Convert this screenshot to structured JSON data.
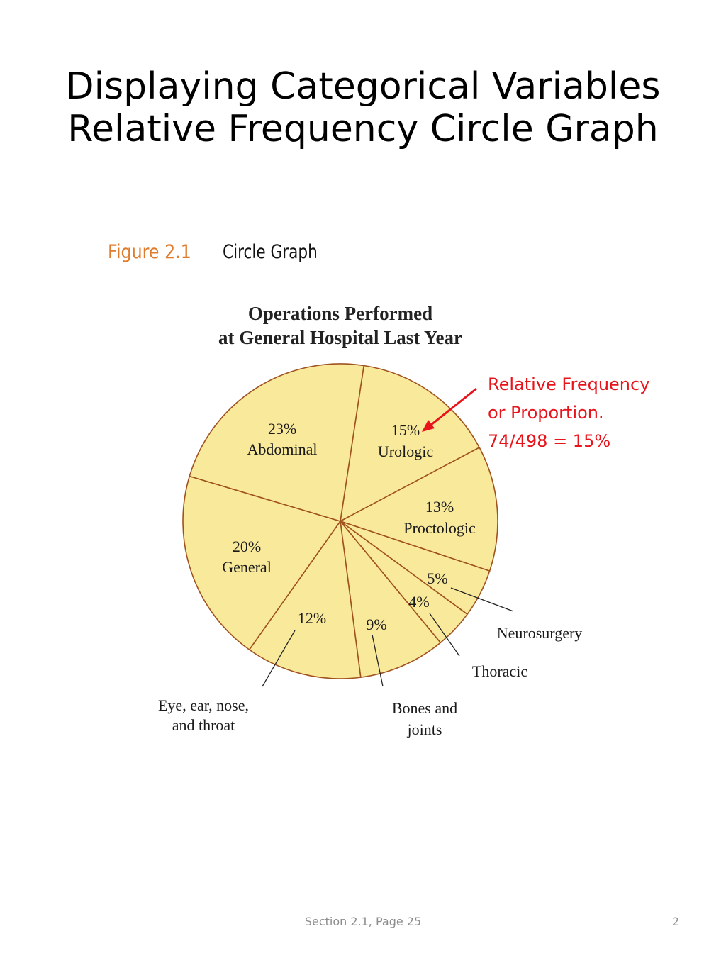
{
  "slide": {
    "title_line1": "Displaying Categorical Variables",
    "title_line2": "Relative Frequency Circle Graph",
    "figure_label": "Figure 2.1",
    "figure_caption": "Circle Graph",
    "annotation": {
      "line1": "Relative Frequency",
      "line2": "or Proportion.",
      "line3": "74/498 = 15%",
      "color": "#e8141c"
    },
    "footer": "Section 2.1, Page 25",
    "page_number": "2"
  },
  "colors": {
    "pie_fill": "#f9e99b",
    "pie_stroke": "#a0521e",
    "figure_label": "#e07b2c"
  },
  "chart_data": {
    "type": "pie",
    "title": "Operations Performed at General Hospital Last Year",
    "title_line1": "Operations Performed",
    "title_line2": "at General Hospital Last Year",
    "categories": [
      "Urologic",
      "Proctologic",
      "Neurosurgery",
      "Thoracic",
      "Bones and joints",
      "Eye, ear, nose, and throat",
      "General",
      "Abdominal"
    ],
    "values": [
      15,
      13,
      5,
      4,
      9,
      12,
      20,
      23
    ],
    "unit": "%",
    "labels": {
      "urologic_pct": "15%",
      "urologic": "Urologic",
      "proctologic_pct": "13%",
      "proctologic": "Proctologic",
      "neuro_pct": "5%",
      "neuro": "Neurosurgery",
      "thoracic_pct": "4%",
      "thoracic": "Thoracic",
      "bones_pct": "9%",
      "bones_1": "Bones and",
      "bones_2": "joints",
      "ent_pct": "12%",
      "ent_1": "Eye, ear, nose,",
      "ent_2": "and throat",
      "general_pct": "20%",
      "general": "General",
      "abdominal_pct": "23%",
      "abdominal": "Abdominal"
    }
  }
}
